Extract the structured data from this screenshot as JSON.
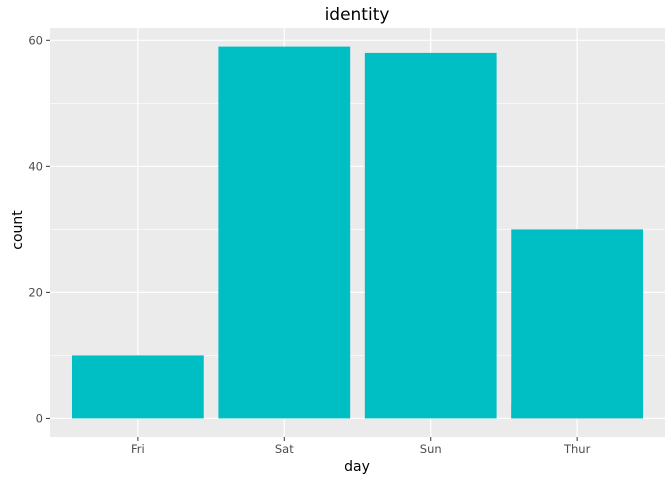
{
  "chart_data": {
    "type": "bar",
    "title": "identity",
    "xlabel": "day",
    "ylabel": "count",
    "categories": [
      "Fri",
      "Sat",
      "Sun",
      "Thur"
    ],
    "series": [
      {
        "values": [
          0,
          0,
          0,
          2
        ],
        "color": "#F8766D"
      },
      {
        "values": [
          10,
          59,
          58,
          30
        ],
        "color": "#00BFC4"
      }
    ],
    "stacking": "overlay",
    "ylim": [
      -2.95,
      61.95
    ],
    "yticks": [
      0,
      20,
      40,
      60
    ],
    "grid": true,
    "legend": "none",
    "panel_color": "#EBEBEB"
  }
}
